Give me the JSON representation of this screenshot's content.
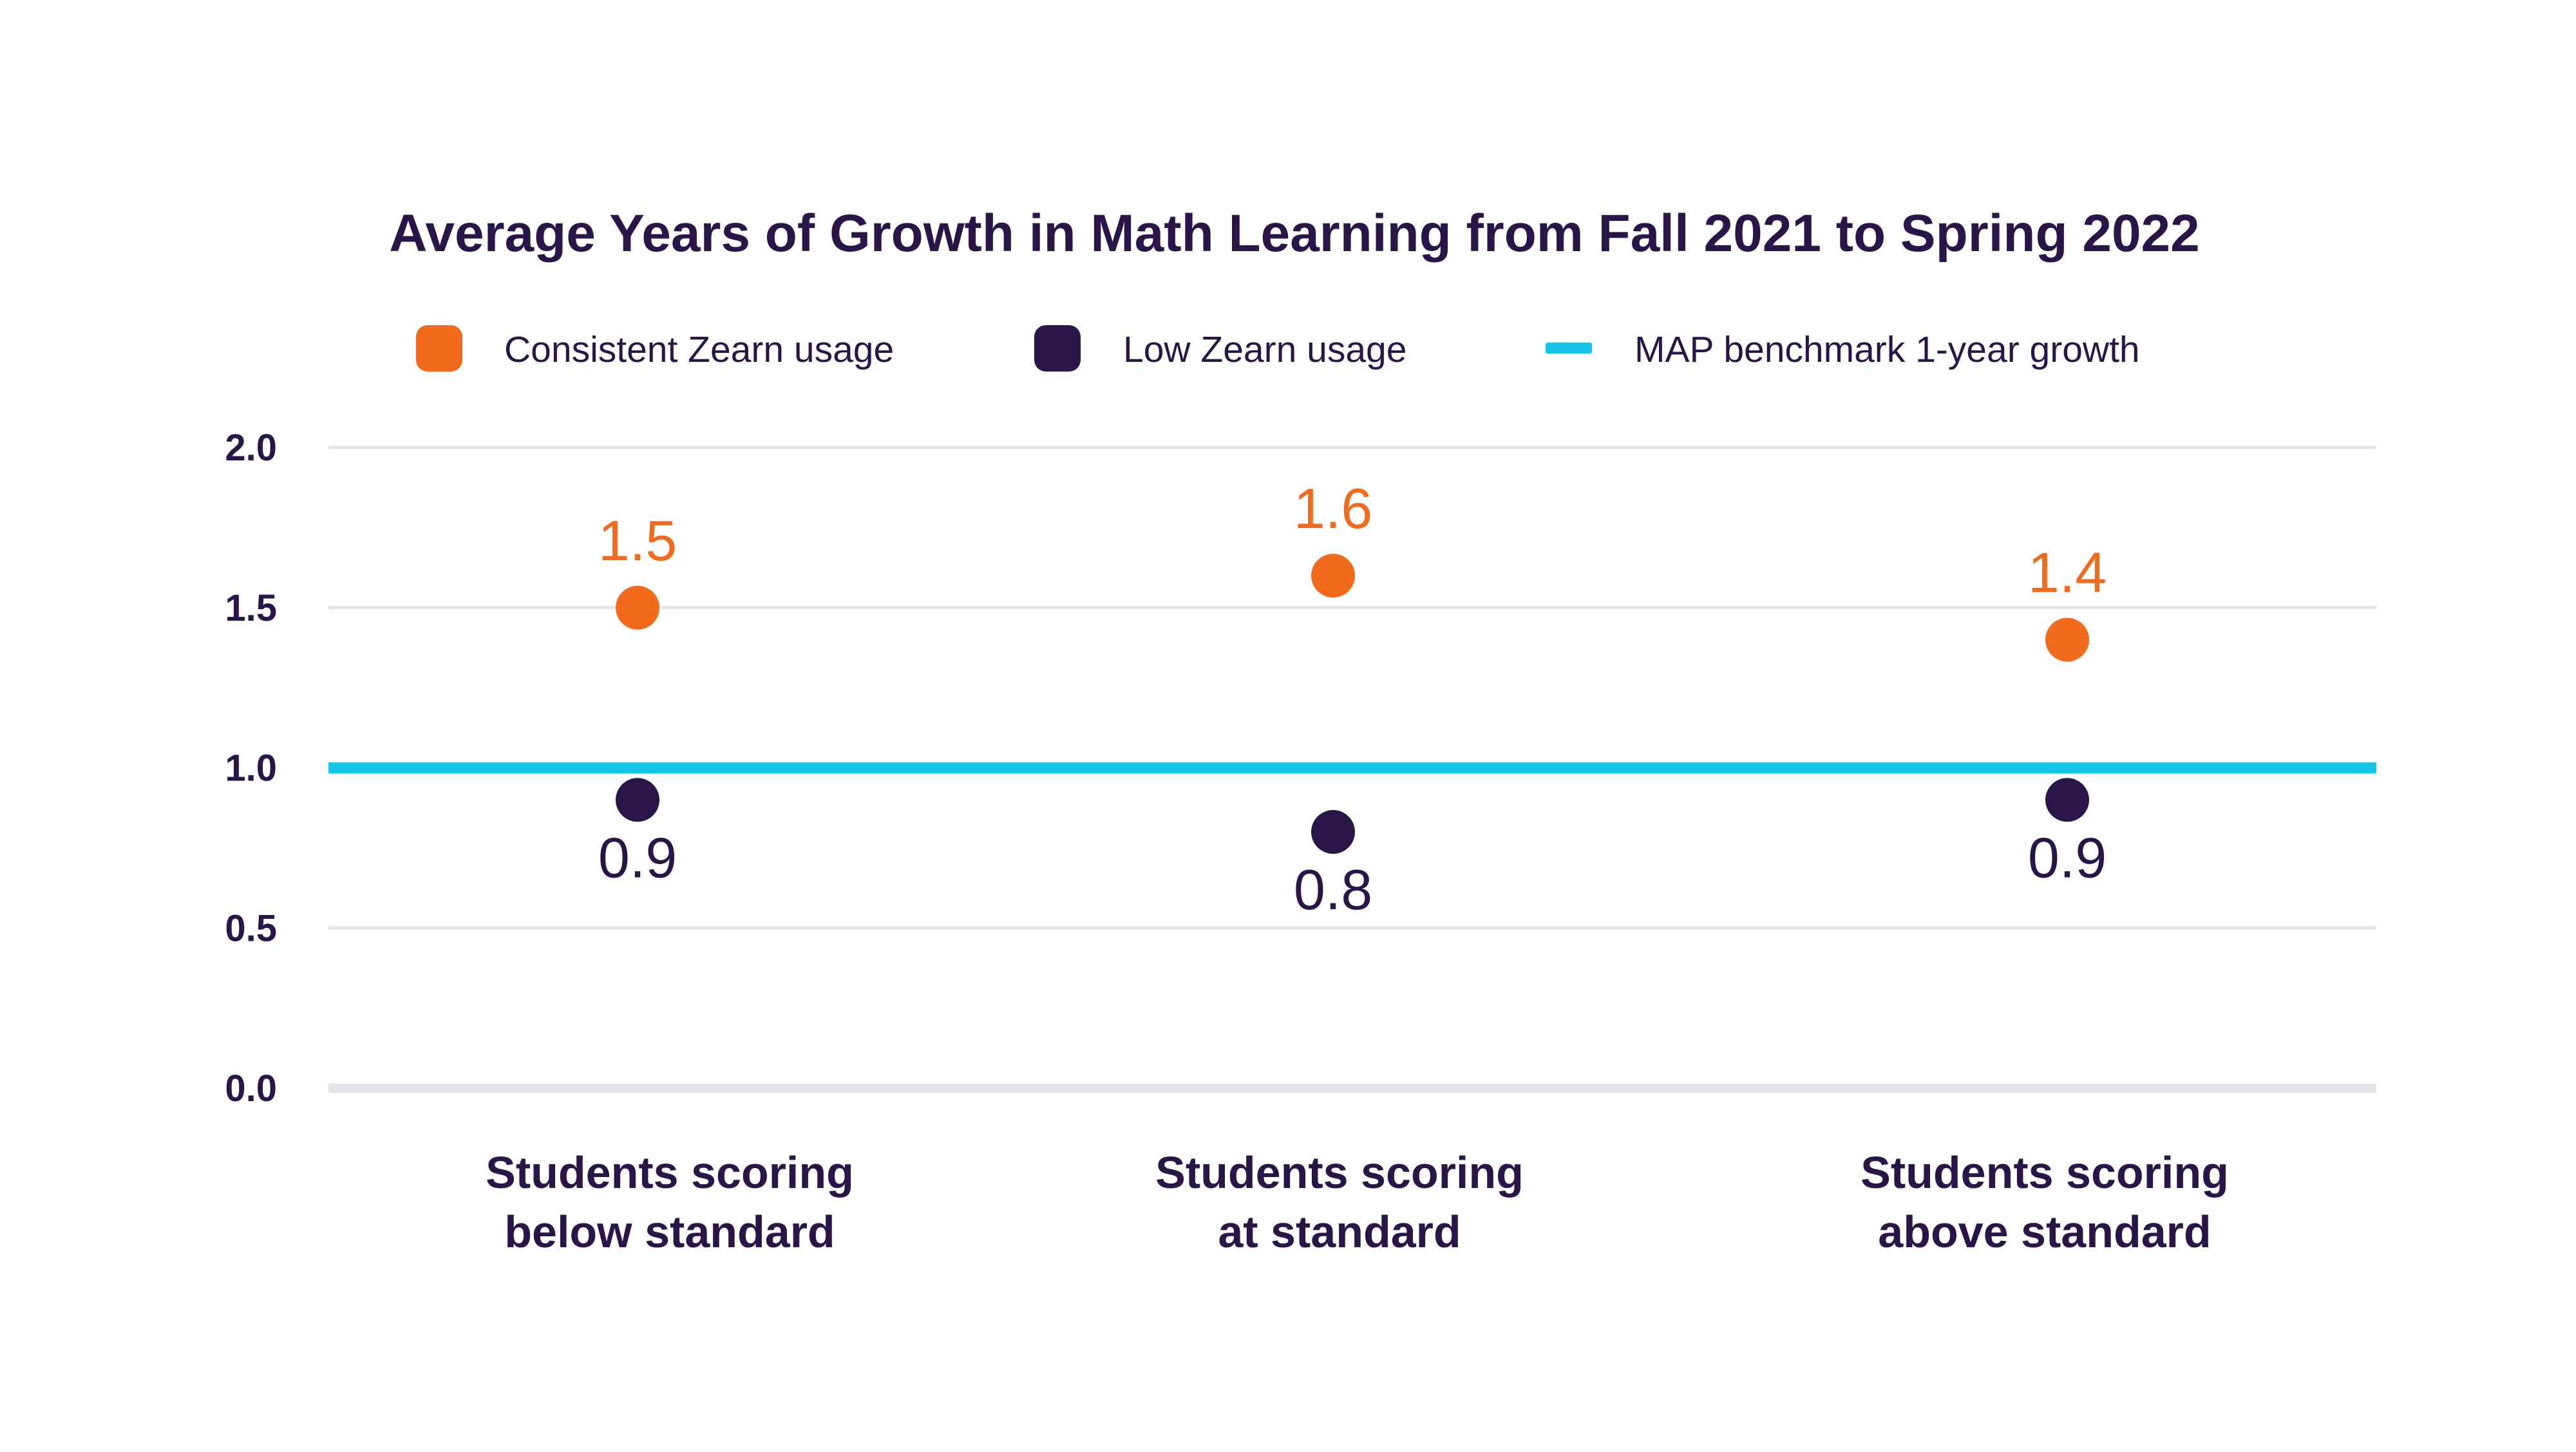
{
  "chart_data": {
    "type": "scatter",
    "title": "Average Years of Growth in Math Learning from Fall 2021 to Spring 2022",
    "categories": [
      [
        "Students scoring",
        "below standard"
      ],
      [
        "Students scoring",
        "at standard"
      ],
      [
        "Students scoring",
        "above standard"
      ]
    ],
    "series": [
      {
        "name": "Consistent Zearn usage",
        "color": "#F26A1B",
        "marker": "circle",
        "values": [
          1.5,
          1.6,
          1.4
        ],
        "labels": [
          "1.5",
          "1.6",
          "1.4"
        ],
        "label_position": "above"
      },
      {
        "name": "Low Zearn usage",
        "color": "#2A1548",
        "marker": "circle",
        "values": [
          0.9,
          0.8,
          0.9
        ],
        "labels": [
          "0.9",
          "0.8",
          "0.9"
        ],
        "label_position": "below"
      }
    ],
    "reference_line": {
      "name": "MAP benchmark 1-year growth",
      "value": 1.0,
      "color": "#17C5E6"
    },
    "yticks": [
      "0.0",
      "0.5",
      "1.0",
      "1.5",
      "2.0"
    ],
    "ylim": [
      0,
      2
    ],
    "xlabel": "",
    "ylabel": "",
    "grid": true,
    "legend": "top",
    "colors": {
      "text": "#2A1548",
      "grid": "#E3E5EA",
      "baseline": "#E3E5EA"
    }
  }
}
